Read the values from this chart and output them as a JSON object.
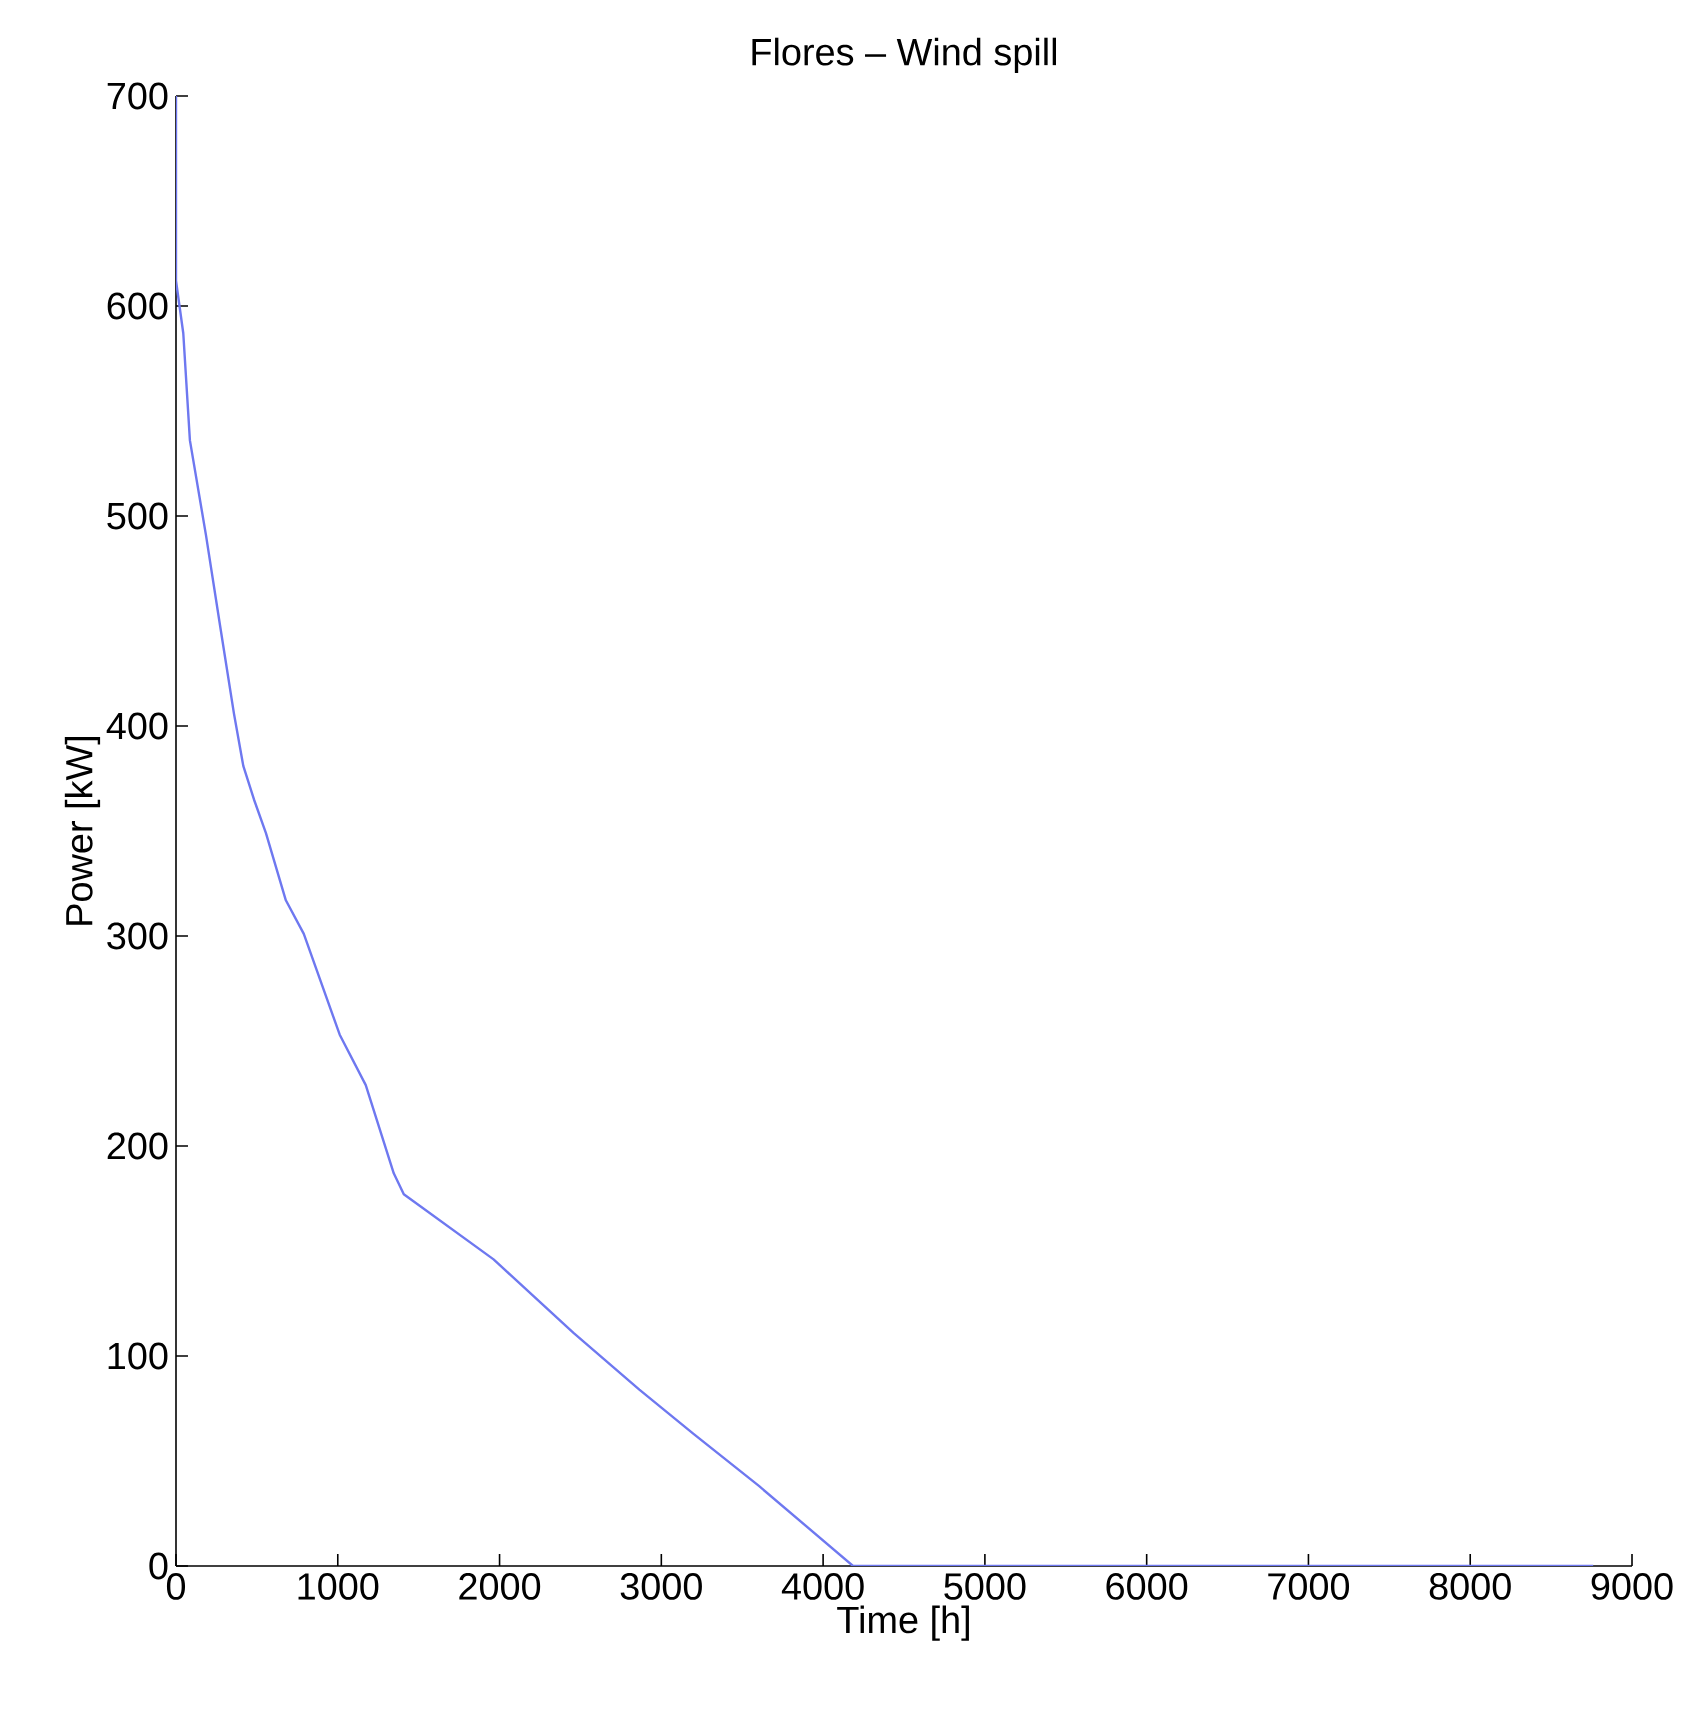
{
  "chart_data": {
    "type": "line",
    "title": "Flores – Wind spill",
    "xlabel": "Time [h]",
    "ylabel": "Power [kW]",
    "x": [
      0,
      0,
      45,
      86,
      185,
      272,
      358,
      416,
      482,
      556,
      679,
      790,
      1012,
      1173,
      1346,
      1408,
      1963,
      2457,
      2864,
      3197,
      3605,
      4185,
      8760
    ],
    "values": [
      700,
      612,
      587,
      536,
      491,
      448,
      406,
      381,
      365,
      349,
      317,
      301,
      253,
      229,
      187,
      177,
      146,
      111,
      84,
      63,
      38,
      0,
      0
    ],
    "color": "#6e78f0",
    "xlim": [
      0,
      9000
    ],
    "xticks": [
      0,
      1000,
      2000,
      3000,
      4000,
      5000,
      6000,
      7000,
      8000,
      9000
    ],
    "ylim": [
      0,
      700
    ],
    "yticks": [
      0,
      100,
      200,
      300,
      400,
      500,
      600,
      700
    ],
    "grid": false,
    "marker": "none",
    "line_style": "solid"
  }
}
